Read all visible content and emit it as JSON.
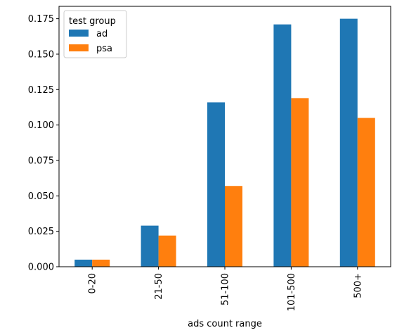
{
  "chart_data": {
    "type": "bar",
    "categories": [
      "0-20",
      "21-50",
      "51-100",
      "101-500",
      "500+"
    ],
    "series": [
      {
        "name": "ad",
        "values": [
          0.005,
          0.029,
          0.116,
          0.171,
          0.175
        ]
      },
      {
        "name": "psa",
        "values": [
          0.005,
          0.022,
          0.057,
          0.119,
          0.105
        ]
      }
    ],
    "title": "",
    "xlabel": "ads count range",
    "ylabel": "",
    "ylim": [
      0,
      0.18375
    ],
    "yticks": [
      0.0,
      0.025,
      0.05,
      0.075,
      0.1,
      0.125,
      0.15,
      0.175
    ],
    "ytick_labels": [
      "0.000",
      "0.025",
      "0.050",
      "0.075",
      "0.100",
      "0.125",
      "0.150",
      "0.175"
    ],
    "legend": {
      "title": "test group",
      "placement": "top-left",
      "entries": [
        "ad",
        "psa"
      ]
    },
    "colors": [
      "#1f77b4",
      "#ff7f0e"
    ],
    "grid": false
  }
}
